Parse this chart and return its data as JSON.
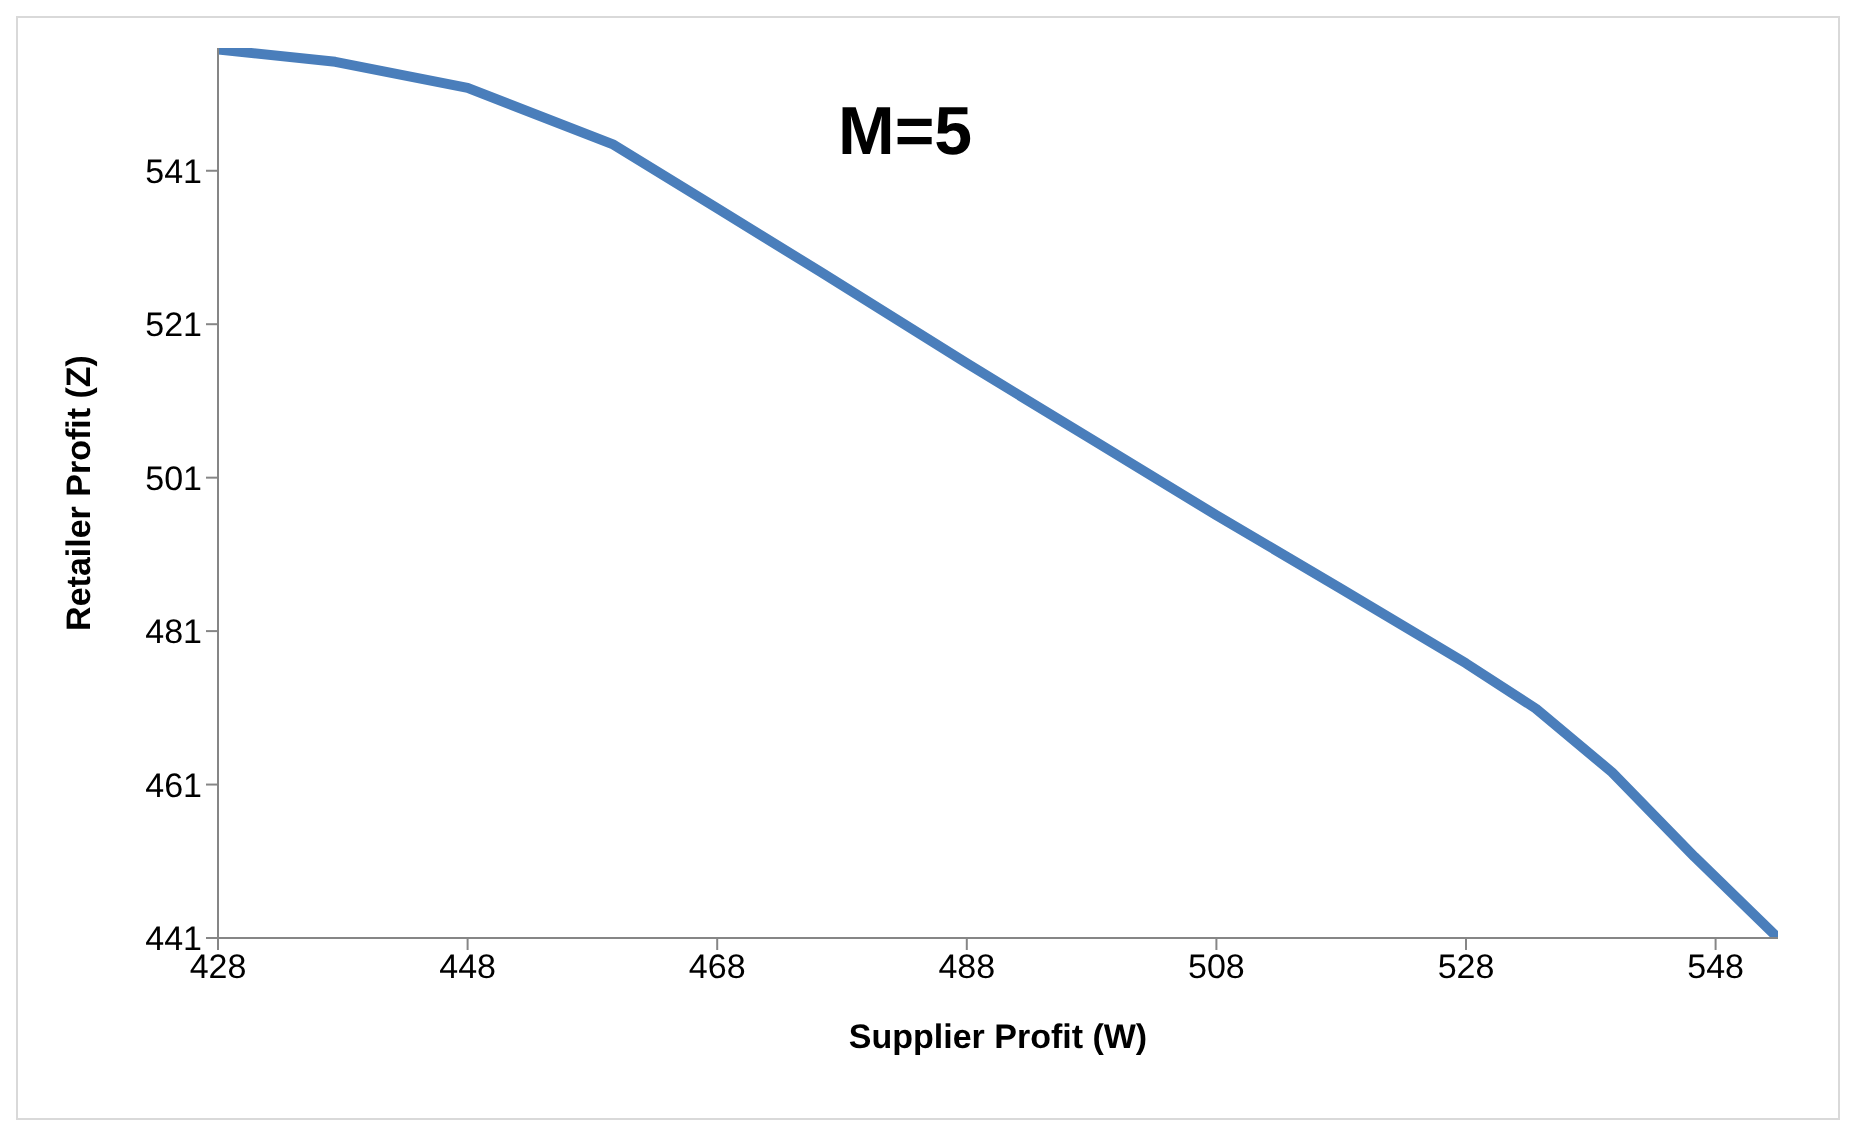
{
  "chart_data": {
    "type": "line",
    "title": "M=5",
    "xlabel": "Supplier Profit (W)",
    "ylabel": "Retailer Profit (Z)",
    "x": [
      428,
      437.4,
      448,
      459.7,
      468,
      476.3,
      488,
      498,
      508,
      518,
      528,
      533.6,
      539.7,
      546.3,
      553
    ],
    "series": [
      {
        "color": "#4a7ebb",
        "values": [
          556.8,
          555.2,
          551.8,
          544.4,
          536.1,
          527.8,
          515.9,
          506,
          496.1,
          486.5,
          476.8,
          470.9,
          462.6,
          451.6,
          441
        ]
      }
    ],
    "xlim": [
      428,
      553
    ],
    "ylim": [
      441,
      557
    ],
    "xticks": [
      428,
      448,
      468,
      488,
      508,
      528,
      548
    ],
    "yticks": [
      441,
      461,
      481,
      501,
      521,
      541
    ],
    "grid": false,
    "legend": false,
    "marker": "none",
    "line_style": "solid"
  }
}
